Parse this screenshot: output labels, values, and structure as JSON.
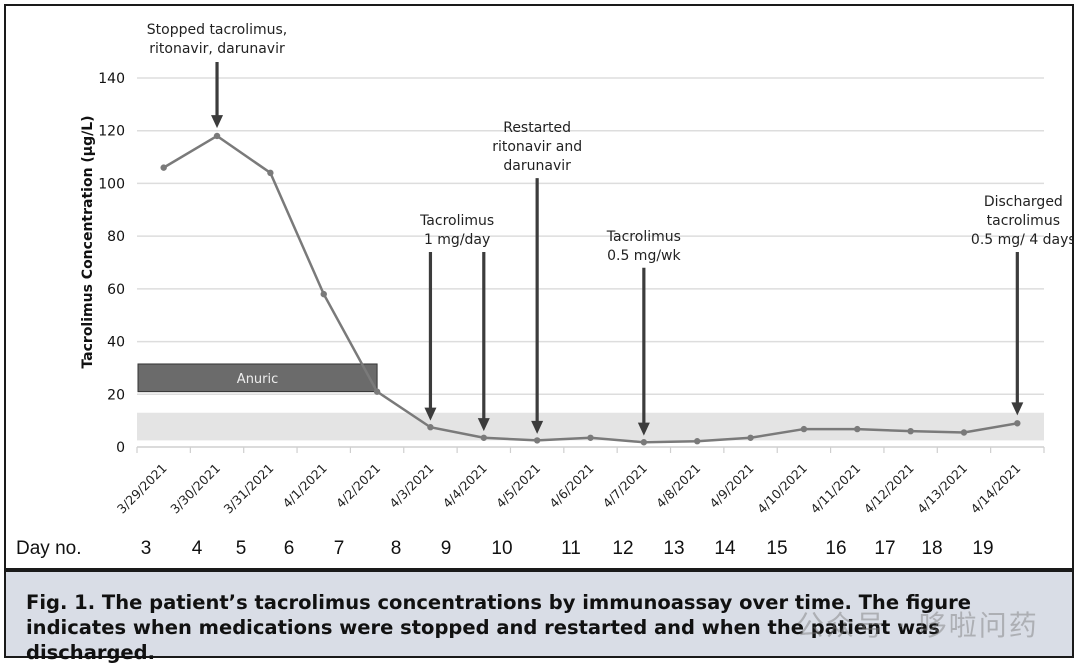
{
  "chart_data": {
    "type": "line",
    "ylabel": "Tacrolimus Concentration (µg/L)",
    "ylim": [
      0,
      140
    ],
    "yticks": [
      0,
      20,
      40,
      60,
      80,
      100,
      120,
      140
    ],
    "grid": true,
    "categories": [
      "3/29/2021",
      "3/30/2021",
      "3/31/2021",
      "4/1/2021",
      "4/2/2021",
      "4/3/2021",
      "4/4/2021",
      "4/5/2021",
      "4/6/2021",
      "4/7/2021",
      "4/8/2021",
      "4/9/2021",
      "4/10/2021",
      "4/11/2021",
      "4/12/2021",
      "4/13/2021",
      "4/14/2021"
    ],
    "series": [
      {
        "name": "Tacrolimus concentration",
        "values": [
          106,
          118,
          104,
          58,
          21,
          7.5,
          3.5,
          2.5,
          3.5,
          1.8,
          2.2,
          3.5,
          6.8,
          6.8,
          6,
          5.5,
          9
        ]
      }
    ],
    "target_range": [
      2.5,
      13
    ],
    "anuric_band": {
      "label": "Anuric",
      "from_index": 0,
      "to_index": 4,
      "y_range": [
        21,
        31.5
      ]
    },
    "day_row": {
      "label": "Day no.",
      "days": [
        "3",
        "4",
        "5",
        "6",
        "7",
        "8",
        "9",
        "10",
        "11",
        "12",
        "13",
        "14",
        "15",
        "16",
        "17",
        "18",
        "19"
      ]
    },
    "annotations": [
      {
        "lines": [
          "Stopped tacrolimus,",
          "ritonavir, darunavir"
        ],
        "at_index": 1,
        "arrow_top_value": 145,
        "arrow_tip_value": 121
      },
      {
        "lines": [
          "Tacrolimus",
          "1 mg/day"
        ],
        "at_index": 5,
        "arrow_top_value": 74,
        "arrow_tip_value": 12,
        "extra_arrow_index": 6
      },
      {
        "lines": [
          "Restarted",
          "ritonavir and",
          "darunavir"
        ],
        "at_index": 7,
        "arrow_top_value": 102,
        "arrow_tip_value": 6
      },
      {
        "lines": [
          "Tacrolimus",
          "0.5 mg/wk"
        ],
        "at_index": 9,
        "arrow_top_value": 68,
        "arrow_tip_value": 6
      },
      {
        "lines": [
          "Discharged",
          "tacrolimus",
          "0.5 mg/ 4 days"
        ],
        "at_index": 16,
        "arrow_top_value": 74,
        "arrow_tip_value": 12
      }
    ]
  },
  "caption": "Fig. 1. The patient’s tacrolimus concentrations by immunoassay over time. The figure indicates when medications were stopped and restarted and when the patient was discharged.",
  "watermark": "公众号 · 哆啦问药",
  "colors": {
    "line": "#7a7a7a",
    "arrow": "#3c3c3c",
    "anuric": "#6b6b6b",
    "band": "#e4e4e4",
    "grid": "#dddddd",
    "caption_bg": "#d9dde6"
  }
}
